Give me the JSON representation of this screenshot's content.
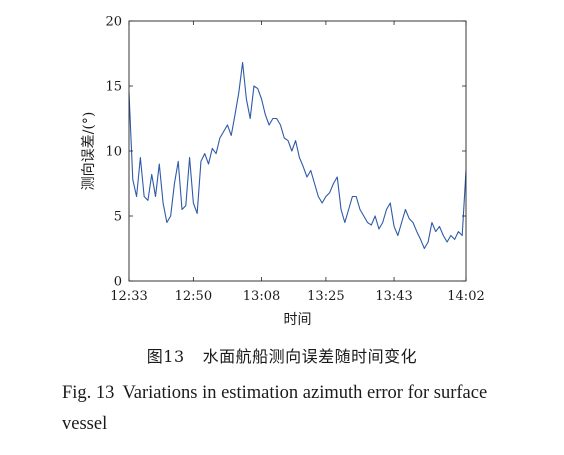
{
  "figure_caption_cn": {
    "label": "图13",
    "text": "水面航船测向误差随时间变化"
  },
  "figure_caption_en": {
    "label": "Fig. 13",
    "text": "Variations in estimation azimuth error for surface vessel"
  },
  "chart_data": {
    "type": "line",
    "xlabel": "时间",
    "ylabel": "测向误差/(°)",
    "xticks": [
      "12:33",
      "12:50",
      "13:08",
      "13:25",
      "13:43",
      "14:02"
    ],
    "xlim": [
      "12:33",
      "14:02"
    ],
    "yticks": [
      0,
      5,
      10,
      15,
      20
    ],
    "ylim": [
      0,
      20
    ],
    "grid": false,
    "line_color": "#2f5aa8",
    "series": [
      {
        "x": [
          "12:33",
          "12:34",
          "12:35",
          "12:36",
          "12:37",
          "12:38",
          "12:39",
          "12:40",
          "12:41",
          "12:42",
          "12:43",
          "12:44",
          "12:45",
          "12:46",
          "12:47",
          "12:48",
          "12:49",
          "12:50",
          "12:51",
          "12:52",
          "12:53",
          "12:54",
          "12:55",
          "12:56",
          "12:57",
          "12:58",
          "12:59",
          "13:00",
          "13:01",
          "13:02",
          "13:03",
          "13:04",
          "13:05",
          "13:06",
          "13:07",
          "13:08",
          "13:09",
          "13:10",
          "13:11",
          "13:12",
          "13:13",
          "13:14",
          "13:15",
          "13:16",
          "13:17",
          "13:18",
          "13:19",
          "13:20",
          "13:21",
          "13:22",
          "13:23",
          "13:24",
          "13:25",
          "13:26",
          "13:27",
          "13:28",
          "13:29",
          "13:30",
          "13:31",
          "13:32",
          "13:33",
          "13:34",
          "13:35",
          "13:36",
          "13:37",
          "13:38",
          "13:39",
          "13:40",
          "13:41",
          "13:42",
          "13:43",
          "13:44",
          "13:45",
          "13:46",
          "13:47",
          "13:48",
          "13:49",
          "13:50",
          "13:51",
          "13:52",
          "13:53",
          "13:54",
          "13:55",
          "13:56",
          "13:57",
          "13:58",
          "13:59",
          "14:00",
          "14:01",
          "14:02"
        ],
        "values": [
          14.5,
          7.8,
          6.5,
          9.5,
          6.5,
          6.2,
          8.2,
          6.5,
          9.0,
          6.0,
          4.5,
          5.0,
          7.5,
          9.2,
          5.5,
          5.8,
          9.5,
          6.0,
          5.2,
          9.2,
          9.8,
          9.0,
          10.2,
          9.8,
          11.0,
          11.5,
          12.0,
          11.2,
          12.8,
          14.5,
          16.8,
          14.0,
          12.5,
          15.0,
          14.8,
          14.0,
          12.8,
          12.0,
          12.5,
          12.5,
          12.0,
          11.0,
          10.8,
          10.0,
          10.8,
          9.5,
          8.8,
          8.0,
          8.5,
          7.5,
          6.5,
          6.0,
          6.5,
          6.8,
          7.5,
          8.0,
          5.5,
          4.5,
          5.5,
          6.5,
          6.5,
          5.5,
          5.0,
          4.5,
          4.3,
          5.0,
          4.0,
          4.5,
          5.5,
          6.0,
          4.2,
          3.5,
          4.5,
          5.5,
          4.8,
          4.5,
          3.8,
          3.2,
          2.5,
          3.0,
          4.5,
          3.8,
          4.2,
          3.5,
          3.0,
          3.5,
          3.2,
          3.8,
          3.5,
          8.5
        ]
      }
    ]
  }
}
